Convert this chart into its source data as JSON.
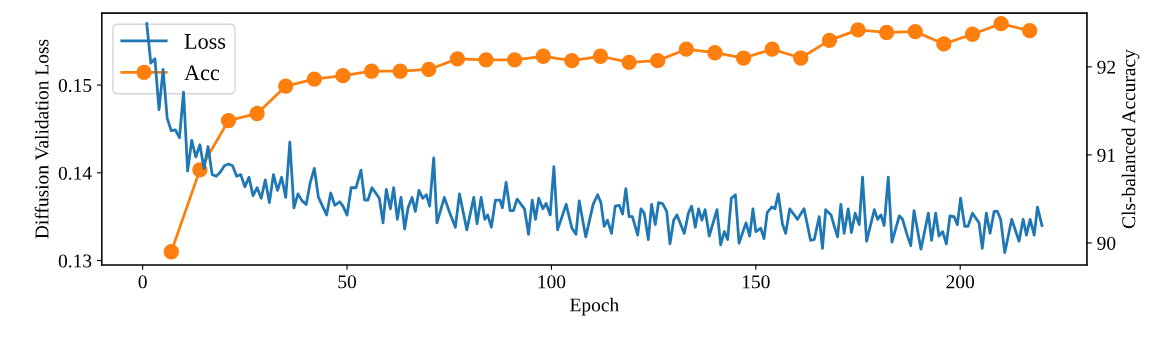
{
  "chart_data": {
    "type": "line",
    "xlabel": "Epoch",
    "ylabel": "Diffusion Validation Loss",
    "y2label": "Cls-balanced Accuracy",
    "xlim": [
      -10,
      231
    ],
    "xticks": [
      0,
      50,
      100,
      150,
      200
    ],
    "ylim": [
      0.1295,
      0.1582
    ],
    "yticks": [
      0.13,
      0.14,
      0.15
    ],
    "y2lim": [
      89.75,
      92.61
    ],
    "y2ticks": [
      90,
      91,
      92
    ],
    "grid": false,
    "legend": "top left",
    "line_style": "solid",
    "series": [
      {
        "name": "Loss",
        "color": "#1f77b4",
        "marker": "none",
        "x": [
          1,
          2,
          3,
          4,
          5,
          6,
          7,
          8,
          9,
          10,
          11,
          12,
          13,
          14,
          15,
          16,
          17,
          18,
          19,
          20,
          21,
          22,
          23,
          24,
          25,
          26,
          27,
          28,
          29,
          30,
          31,
          32,
          33,
          34,
          35,
          36,
          37,
          38,
          39,
          40,
          41,
          42,
          43,
          44,
          45,
          46,
          47,
          48.2,
          49.0,
          50.0,
          51.0,
          52.2,
          53.4,
          54.3,
          55.1,
          56.1,
          57.9,
          58.8,
          59.6,
          60.6,
          61.4,
          62.3,
          63.2,
          64.1,
          64.9,
          65.9,
          66.7,
          67.6,
          68.5,
          69.4,
          70.2,
          71.2,
          72.0,
          73.8,
          75.0,
          76.5,
          77.5,
          79.3,
          81.0,
          81.8,
          82.8,
          83.7,
          84.4,
          85.3,
          86.3,
          87.4,
          88.0,
          88.9,
          89.9,
          90.7,
          91.6,
          93.4,
          94.4,
          95.3,
          96.1,
          96.9,
          97.9,
          98.7,
          99.7,
          100.6,
          101.5,
          103.6,
          105.0,
          106.0,
          106.8,
          107.6,
          108.4,
          110.2,
          111.3,
          112.1,
          112.9,
          113.7,
          114.7,
          115.6,
          116.6,
          117.4,
          118.2,
          119.0,
          119.8,
          121.1,
          121.9,
          122.7,
          123.7,
          124.5,
          125.4,
          126.2,
          127.2,
          128.2,
          129.0,
          129.9,
          130.7,
          132.5,
          133.5,
          134.3,
          135.2,
          136.0,
          136.8,
          137.6,
          138.6,
          140.5,
          141.4,
          142.3,
          143.1,
          144.0,
          145.0,
          145.9,
          147.6,
          148.5,
          149.3,
          150.0,
          151.2,
          152.0,
          152.8,
          153.9,
          154.7,
          155.5,
          156.5,
          157.3,
          158.3,
          160.2,
          161.8,
          163.4,
          164.3,
          165.5,
          166.3,
          167.1,
          168.4,
          169.2,
          170.0,
          170.8,
          171.6,
          172.6,
          173.4,
          174.3,
          175.3,
          176.1,
          177.1,
          179.0,
          179.8,
          180.6,
          181.4,
          182.4,
          183.3,
          185.1,
          185.9,
          186.9,
          187.9,
          188.7,
          190.4,
          192.2,
          193.0,
          194.0,
          194.8,
          195.7,
          196.6,
          197.5,
          198.5,
          199.3,
          200.1,
          201.1,
          201.9,
          203.0,
          204.6,
          205.4,
          206.4,
          207.3,
          208.3,
          209.1,
          209.9,
          210.9,
          212.6,
          214.4,
          215.4,
          216.2,
          217.1,
          218.1,
          218.9,
          220.0
        ],
        "values": [
          0.157,
          0.1525,
          0.153,
          0.1472,
          0.1518,
          0.1462,
          0.1448,
          0.1449,
          0.144,
          0.1492,
          0.1402,
          0.1437,
          0.1418,
          0.1432,
          0.1405,
          0.143,
          0.1398,
          0.1396,
          0.1401,
          0.1408,
          0.141,
          0.1408,
          0.1396,
          0.1398,
          0.1384,
          0.1395,
          0.1374,
          0.1383,
          0.1371,
          0.1392,
          0.1366,
          0.1398,
          0.138,
          0.1395,
          0.1372,
          0.1435,
          0.136,
          0.1376,
          0.1368,
          0.1364,
          0.1389,
          0.1405,
          0.1372,
          0.1362,
          0.1352,
          0.1377,
          0.1363,
          0.1367,
          0.1362,
          0.1352,
          0.1383,
          0.1383,
          0.1403,
          0.1369,
          0.1369,
          0.1383,
          0.1371,
          0.1343,
          0.1381,
          0.1359,
          0.1383,
          0.1347,
          0.1372,
          0.1336,
          0.136,
          0.1372,
          0.1356,
          0.138,
          0.1371,
          0.1375,
          0.1362,
          0.1417,
          0.1343,
          0.1372,
          0.1356,
          0.1338,
          0.1376,
          0.1335,
          0.1372,
          0.1342,
          0.1372,
          0.1347,
          0.1352,
          0.1338,
          0.1369,
          0.1369,
          0.136,
          0.1389,
          0.1357,
          0.1357,
          0.137,
          0.1359,
          0.133,
          0.1369,
          0.1347,
          0.1371,
          0.1359,
          0.1365,
          0.1352,
          0.1407,
          0.1335,
          0.1364,
          0.1337,
          0.133,
          0.1368,
          0.1347,
          0.1327,
          0.1364,
          0.1375,
          0.1366,
          0.1339,
          0.1346,
          0.1331,
          0.1362,
          0.1363,
          0.1353,
          0.1382,
          0.135,
          0.135,
          0.1329,
          0.1359,
          0.1354,
          0.1324,
          0.1364,
          0.1341,
          0.1366,
          0.1365,
          0.1356,
          0.1319,
          0.1346,
          0.1352,
          0.1331,
          0.1354,
          0.1362,
          0.1338,
          0.1359,
          0.1346,
          0.1358,
          0.1328,
          0.1358,
          0.1318,
          0.1333,
          0.1324,
          0.1371,
          0.1375,
          0.132,
          0.1343,
          0.1328,
          0.1359,
          0.1333,
          0.1337,
          0.1325,
          0.1355,
          0.1361,
          0.1359,
          0.1376,
          0.1342,
          0.1331,
          0.1359,
          0.1347,
          0.1359,
          0.1323,
          0.1324,
          0.135,
          0.1314,
          0.1358,
          0.1352,
          0.1339,
          0.1327,
          0.1364,
          0.1331,
          0.1359,
          0.1332,
          0.1354,
          0.1341,
          0.1395,
          0.1322,
          0.1358,
          0.1347,
          0.1352,
          0.134,
          0.1395,
          0.1321,
          0.1351,
          0.1347,
          0.1331,
          0.1317,
          0.1357,
          0.1313,
          0.1354,
          0.1323,
          0.1354,
          0.1328,
          0.1333,
          0.1319,
          0.1351,
          0.135,
          0.1341,
          0.1371,
          0.1339,
          0.1339,
          0.1354,
          0.1343,
          0.1314,
          0.1354,
          0.1331,
          0.1356,
          0.1356,
          0.1347,
          0.1309,
          0.1347,
          0.1322,
          0.1347,
          0.1329,
          0.1347,
          0.1329,
          0.1361,
          0.134
        ]
      },
      {
        "name": "Acc",
        "color": "#ff7f0e",
        "marker": "circle",
        "axis": "y2",
        "x": [
          7,
          14,
          21,
          28,
          35,
          42,
          49,
          56,
          63,
          70,
          77,
          84,
          91,
          98,
          105,
          112,
          119,
          126,
          133,
          140,
          147,
          154,
          161,
          168,
          175,
          182,
          189,
          196,
          203,
          210,
          217
        ],
        "values": [
          89.9,
          90.83,
          91.39,
          91.47,
          91.78,
          91.86,
          91.9,
          91.95,
          91.95,
          91.97,
          92.09,
          92.08,
          92.08,
          92.12,
          92.07,
          92.12,
          92.05,
          92.07,
          92.2,
          92.16,
          92.1,
          92.2,
          92.1,
          92.3,
          92.42,
          92.39,
          92.4,
          92.26,
          92.37,
          92.49,
          92.41
        ]
      }
    ]
  }
}
